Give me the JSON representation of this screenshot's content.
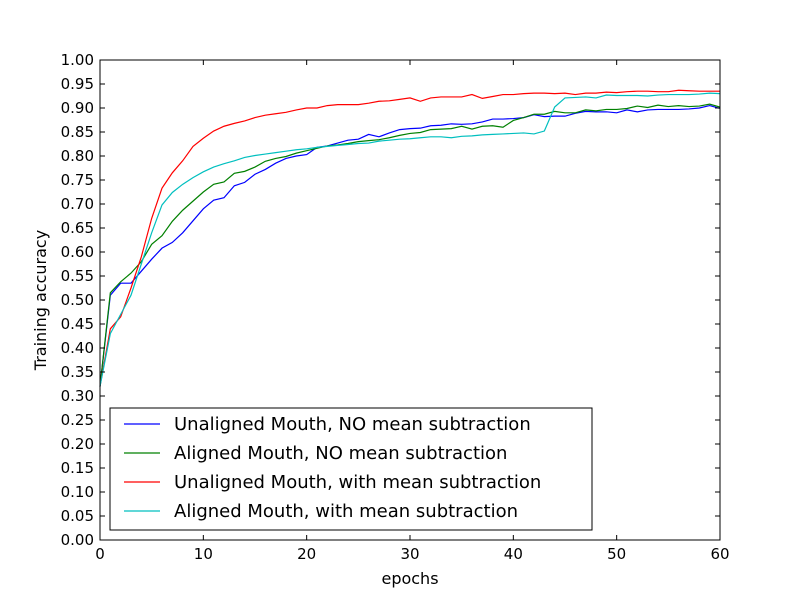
{
  "chart_data": {
    "type": "line",
    "title": "",
    "xlabel": "epochs",
    "ylabel": "Training accuracy",
    "xlim": [
      0,
      60
    ],
    "ylim": [
      0.0,
      1.0
    ],
    "x_ticks": [
      "0",
      "10",
      "20",
      "30",
      "40",
      "50",
      "60"
    ],
    "y_ticks": [
      "0.00",
      "0.05",
      "0.10",
      "0.15",
      "0.20",
      "0.25",
      "0.30",
      "0.35",
      "0.40",
      "0.45",
      "0.50",
      "0.55",
      "0.60",
      "0.65",
      "0.70",
      "0.75",
      "0.80",
      "0.85",
      "0.90",
      "0.95",
      "1.00"
    ],
    "grid": false,
    "legend_position": "bottom-left",
    "x": [
      0,
      1,
      2,
      3,
      4,
      5,
      6,
      7,
      8,
      9,
      10,
      11,
      12,
      13,
      14,
      15,
      16,
      17,
      18,
      19,
      20,
      21,
      22,
      23,
      24,
      25,
      26,
      27,
      28,
      29,
      30,
      31,
      32,
      33,
      34,
      35,
      36,
      37,
      38,
      39,
      40,
      41,
      42,
      43,
      44,
      45,
      46,
      47,
      48,
      49,
      50,
      51,
      52,
      53,
      54,
      55,
      56,
      57,
      58,
      59,
      60
    ],
    "series": [
      {
        "name": "Unaligned Mouth, NO mean subtraction",
        "color": "#0000ff",
        "values": [
          0.32,
          0.51,
          0.535,
          0.535,
          0.56,
          0.585,
          0.608,
          0.62,
          0.64,
          0.665,
          0.69,
          0.708,
          0.713,
          0.738,
          0.745,
          0.762,
          0.772,
          0.785,
          0.795,
          0.8,
          0.803,
          0.818,
          0.821,
          0.827,
          0.833,
          0.835,
          0.845,
          0.84,
          0.848,
          0.855,
          0.857,
          0.858,
          0.863,
          0.864,
          0.867,
          0.866,
          0.867,
          0.871,
          0.877,
          0.877,
          0.878,
          0.88,
          0.886,
          0.882,
          0.883,
          0.883,
          0.889,
          0.893,
          0.892,
          0.892,
          0.89,
          0.896,
          0.892,
          0.896,
          0.897,
          0.897,
          0.897,
          0.898,
          0.9,
          0.905,
          0.899
        ]
      },
      {
        "name": "Aligned Mouth, NO mean subtraction",
        "color": "#008000",
        "values": [
          0.32,
          0.515,
          0.538,
          0.556,
          0.58,
          0.616,
          0.634,
          0.664,
          0.687,
          0.706,
          0.725,
          0.741,
          0.746,
          0.764,
          0.768,
          0.777,
          0.789,
          0.795,
          0.799,
          0.806,
          0.811,
          0.816,
          0.821,
          0.823,
          0.826,
          0.83,
          0.832,
          0.834,
          0.838,
          0.843,
          0.847,
          0.849,
          0.855,
          0.856,
          0.857,
          0.862,
          0.856,
          0.862,
          0.863,
          0.86,
          0.874,
          0.88,
          0.887,
          0.887,
          0.893,
          0.89,
          0.89,
          0.896,
          0.894,
          0.897,
          0.897,
          0.899,
          0.904,
          0.901,
          0.906,
          0.903,
          0.905,
          0.903,
          0.904,
          0.908,
          0.902
        ]
      },
      {
        "name": "Unaligned Mouth, with mean subtraction",
        "color": "#ff0000",
        "values": [
          0.32,
          0.44,
          0.465,
          0.525,
          0.59,
          0.67,
          0.733,
          0.765,
          0.79,
          0.82,
          0.837,
          0.852,
          0.862,
          0.868,
          0.873,
          0.88,
          0.885,
          0.888,
          0.891,
          0.896,
          0.9,
          0.9,
          0.905,
          0.907,
          0.907,
          0.907,
          0.91,
          0.914,
          0.915,
          0.918,
          0.921,
          0.914,
          0.921,
          0.923,
          0.923,
          0.923,
          0.928,
          0.92,
          0.924,
          0.928,
          0.928,
          0.93,
          0.931,
          0.931,
          0.93,
          0.931,
          0.928,
          0.931,
          0.931,
          0.933,
          0.932,
          0.934,
          0.935,
          0.935,
          0.934,
          0.934,
          0.937,
          0.936,
          0.935,
          0.935,
          0.935
        ]
      },
      {
        "name": "Aligned Mouth, with mean subtraction",
        "color": "#00bfbf",
        "values": [
          0.32,
          0.43,
          0.47,
          0.51,
          0.575,
          0.64,
          0.698,
          0.724,
          0.741,
          0.755,
          0.767,
          0.777,
          0.784,
          0.79,
          0.797,
          0.801,
          0.804,
          0.807,
          0.81,
          0.813,
          0.815,
          0.818,
          0.82,
          0.822,
          0.824,
          0.826,
          0.827,
          0.831,
          0.833,
          0.835,
          0.836,
          0.838,
          0.84,
          0.84,
          0.838,
          0.841,
          0.842,
          0.844,
          0.845,
          0.846,
          0.847,
          0.848,
          0.846,
          0.852,
          0.902,
          0.921,
          0.922,
          0.923,
          0.921,
          0.927,
          0.926,
          0.926,
          0.926,
          0.925,
          0.927,
          0.928,
          0.928,
          0.928,
          0.929,
          0.931,
          0.93
        ]
      }
    ]
  }
}
